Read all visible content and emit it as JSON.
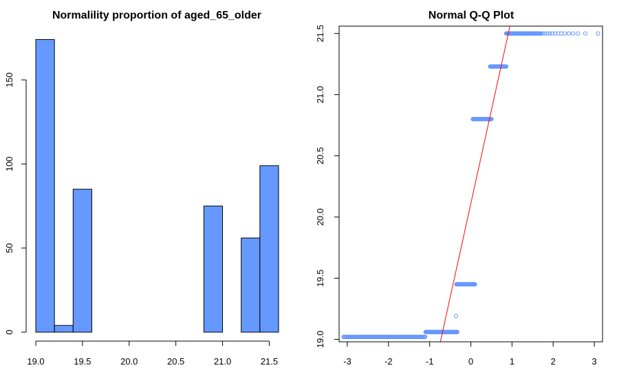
{
  "colors": {
    "bar_fill": "#6699FF",
    "point_stroke": "#6699FF",
    "ref_line": "#FF0000",
    "axis": "#000000"
  },
  "chart_data": [
    {
      "type": "bar",
      "title": "Normalility proportion of aged_65_older",
      "xlabel": "",
      "ylabel": "",
      "xlim": [
        19.0,
        21.6
      ],
      "ylim": [
        0,
        175
      ],
      "bin_edges": [
        19.0,
        19.2,
        19.4,
        19.6,
        19.8,
        20.0,
        20.2,
        20.4,
        20.6,
        20.8,
        21.0,
        21.2,
        21.4,
        21.6
      ],
      "values": [
        174,
        4,
        85,
        0,
        0,
        0,
        0,
        0,
        0,
        75,
        0,
        56,
        99
      ],
      "x_ticks": [
        "19.0",
        "19.5",
        "20.0",
        "20.5",
        "21.0",
        "21.5"
      ],
      "y_ticks": [
        "0",
        "50",
        "100",
        "150"
      ],
      "grid": false
    },
    {
      "type": "scatter",
      "title": "Normal Q-Q Plot",
      "xlabel": "",
      "ylabel": "",
      "xlim": [
        -3.2,
        3.2
      ],
      "ylim": [
        18.98,
        21.56
      ],
      "x_ticks": [
        "-3",
        "-2",
        "-1",
        "0",
        "1",
        "2",
        "3"
      ],
      "y_ticks": [
        "19.0",
        "19.5",
        "20.0",
        "20.5",
        "21.0",
        "21.5"
      ],
      "grid": false,
      "reference_line": {
        "x": [
          -0.74,
          0.95
        ],
        "y": [
          18.98,
          21.56
        ]
      },
      "point_groups": [
        {
          "y": 19.02,
          "x_from": -3.09,
          "x_to": -1.1,
          "step": 0.02,
          "sparse_x": [
            -3.09,
            -2.78,
            -2.6,
            -2.5,
            -2.4,
            -2.32,
            -2.25,
            -2.19,
            -2.13,
            -2.08,
            -2.03,
            -1.99,
            -1.95
          ]
        },
        {
          "y": 19.06,
          "x_from": -1.1,
          "x_to": -0.33,
          "step": 0.01
        },
        {
          "y": 19.19,
          "x_from": -0.36,
          "x_to": -0.36,
          "step": 1
        },
        {
          "y": 19.45,
          "x_from": -0.35,
          "x_to": 0.1,
          "step": 0.01
        },
        {
          "y": 20.8,
          "x_from": 0.05,
          "x_to": 0.5,
          "step": 0.01
        },
        {
          "y": 21.23,
          "x_from": 0.47,
          "x_to": 0.86,
          "step": 0.01
        },
        {
          "y": 21.5,
          "x_from": 0.86,
          "x_to": 1.7,
          "step": 0.01,
          "sparse_x": [
            1.75,
            1.8,
            1.86,
            1.92,
            1.98,
            2.05,
            2.12,
            2.2,
            2.28,
            2.38,
            2.48,
            2.6,
            2.78,
            3.09
          ]
        }
      ]
    }
  ]
}
